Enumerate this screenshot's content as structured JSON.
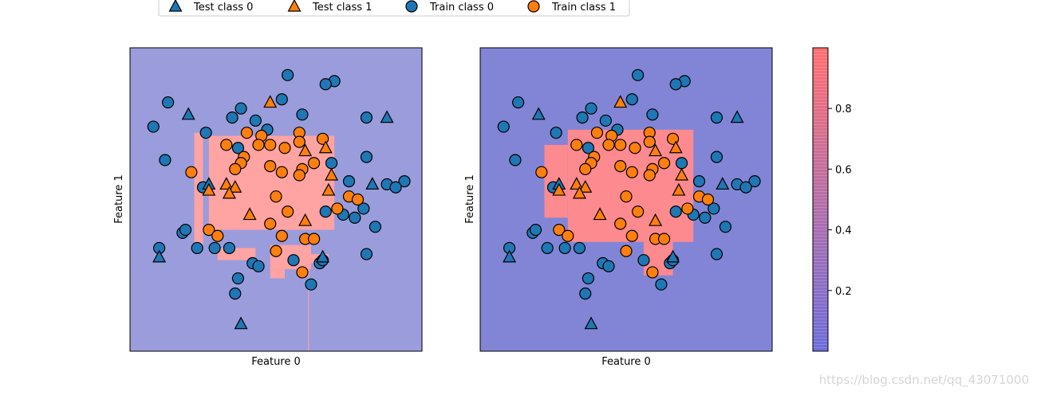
{
  "legend": {
    "items": [
      {
        "label": "Test class 0",
        "marker": "triangle",
        "color": "#1f77b4"
      },
      {
        "label": "Test class 1",
        "marker": "triangle",
        "color": "#ff7f0e"
      },
      {
        "label": "Train class 0",
        "marker": "circle",
        "color": "#1f77b4"
      },
      {
        "label": "Train class 1",
        "marker": "circle",
        "color": "#ff7f0e"
      }
    ]
  },
  "colors": {
    "class0": "#1f77b4",
    "class1": "#ff7f0e",
    "low_region": "#9a9cdc",
    "high_region": "#ffa3a3",
    "colorbar_low": "#6d6ddd",
    "colorbar_high": "#ff6f6f"
  },
  "chart_data": [
    {
      "type": "scatter",
      "xlabel": "Feature 0",
      "ylabel": "Feature 1",
      "xlim": [
        0,
        1
      ],
      "ylim": [
        0,
        1
      ],
      "decision_region_high": [
        {
          "x0": 0.27,
          "x1": 0.7,
          "y0": 0.71,
          "y1": 0.4
        },
        {
          "x0": 0.22,
          "x1": 0.25,
          "y0": 0.72,
          "y1": 0.35
        },
        {
          "x0": 0.61,
          "x1": 0.68,
          "y0": 0.32,
          "y1": 0.29
        },
        {
          "x0": 0.48,
          "x1": 0.62,
          "y0": 0.35,
          "y1": 0.27
        },
        {
          "x0": 0.48,
          "x1": 0.53,
          "y0": 0.27,
          "y1": 0.24
        },
        {
          "x0": 0.3,
          "x1": 0.43,
          "y0": 0.34,
          "y1": 0.3
        },
        {
          "x0": 0.61,
          "x1": 0.613,
          "y0": 0.27,
          "y1": 0.0
        }
      ],
      "series": [
        {
          "name": "Train class 0",
          "marker": "circle",
          "class": 0,
          "x": [
            0.54,
            0.7,
            0.67,
            0.13,
            0.52,
            0.38,
            0.35,
            0.59,
            0.08,
            0.43,
            0.47,
            0.12,
            0.26,
            0.37,
            0.25,
            0.81,
            0.88,
            0.75,
            0.81,
            0.69,
            0.94,
            0.91,
            0.8,
            0.73,
            0.77,
            0.67,
            0.84,
            0.18,
            0.19,
            0.1,
            0.23,
            0.29,
            0.34,
            0.42,
            0.56,
            0.65,
            0.44,
            0.62,
            0.36,
            0.81,
            0.66,
            0.37
          ],
          "y": [
            0.91,
            0.89,
            0.88,
            0.82,
            0.83,
            0.8,
            0.77,
            0.78,
            0.74,
            0.76,
            0.73,
            0.63,
            0.72,
            0.67,
            0.54,
            0.77,
            0.55,
            0.56,
            0.64,
            0.62,
            0.56,
            0.54,
            0.47,
            0.45,
            0.44,
            0.46,
            0.41,
            0.39,
            0.4,
            0.34,
            0.34,
            0.34,
            0.34,
            0.29,
            0.3,
            0.29,
            0.28,
            0.22,
            0.19,
            0.32,
            0.3,
            0.24
          ]
        },
        {
          "name": "Train class 1",
          "marker": "circle",
          "class": 1,
          "x": [
            0.58,
            0.4,
            0.45,
            0.33,
            0.44,
            0.58,
            0.66,
            0.53,
            0.48,
            0.39,
            0.21,
            0.59,
            0.63,
            0.38,
            0.36,
            0.48,
            0.52,
            0.58,
            0.75,
            0.78,
            0.71,
            0.27,
            0.3,
            0.5,
            0.54,
            0.48,
            0.52,
            0.6,
            0.63,
            0.5,
            0.59
          ],
          "y": [
            0.72,
            0.72,
            0.71,
            0.68,
            0.68,
            0.69,
            0.7,
            0.67,
            0.68,
            0.64,
            0.59,
            0.6,
            0.62,
            0.62,
            0.6,
            0.61,
            0.59,
            0.58,
            0.51,
            0.5,
            0.47,
            0.4,
            0.38,
            0.51,
            0.46,
            0.42,
            0.38,
            0.37,
            0.37,
            0.33,
            0.26
          ]
        },
        {
          "name": "Test class 0",
          "marker": "triangle",
          "class": 0,
          "x": [
            0.2,
            0.88,
            0.27,
            0.83,
            0.1,
            0.66,
            0.38
          ],
          "y": [
            0.78,
            0.77,
            0.55,
            0.55,
            0.31,
            0.31,
            0.09
          ]
        },
        {
          "name": "Test class 1",
          "marker": "triangle",
          "class": 1,
          "x": [
            0.48,
            0.67,
            0.6,
            0.33,
            0.36,
            0.27,
            0.68,
            0.41,
            0.6,
            0.69,
            0.34
          ],
          "y": [
            0.82,
            0.67,
            0.66,
            0.55,
            0.54,
            0.53,
            0.53,
            0.45,
            0.43,
            0.58,
            0.52
          ]
        }
      ]
    },
    {
      "type": "scatter",
      "xlabel": "Feature 0",
      "ylabel": "Feature 1",
      "xlim": [
        0,
        1
      ],
      "ylim": [
        0,
        1
      ],
      "decision_region_high": [
        {
          "x0": 0.3,
          "x1": 0.73,
          "y0": 0.73,
          "y1": 0.36
        },
        {
          "x0": 0.22,
          "x1": 0.3,
          "y0": 0.68,
          "y1": 0.44
        },
        {
          "x0": 0.56,
          "x1": 0.66,
          "y0": 0.36,
          "y1": 0.25
        }
      ],
      "series": [
        {
          "name": "Train class 0",
          "marker": "circle",
          "class": 0,
          "x": [
            0.54,
            0.7,
            0.67,
            0.13,
            0.52,
            0.38,
            0.35,
            0.59,
            0.08,
            0.43,
            0.47,
            0.12,
            0.26,
            0.37,
            0.25,
            0.81,
            0.88,
            0.75,
            0.81,
            0.69,
            0.94,
            0.91,
            0.8,
            0.73,
            0.77,
            0.67,
            0.84,
            0.18,
            0.19,
            0.1,
            0.23,
            0.29,
            0.34,
            0.42,
            0.56,
            0.65,
            0.44,
            0.62,
            0.36,
            0.81,
            0.66,
            0.37
          ],
          "y": [
            0.91,
            0.89,
            0.88,
            0.82,
            0.83,
            0.8,
            0.77,
            0.78,
            0.74,
            0.76,
            0.73,
            0.63,
            0.72,
            0.67,
            0.54,
            0.77,
            0.55,
            0.56,
            0.64,
            0.62,
            0.56,
            0.54,
            0.47,
            0.45,
            0.44,
            0.46,
            0.41,
            0.39,
            0.4,
            0.34,
            0.34,
            0.34,
            0.34,
            0.29,
            0.3,
            0.29,
            0.28,
            0.22,
            0.19,
            0.32,
            0.3,
            0.24
          ]
        },
        {
          "name": "Train class 1",
          "marker": "circle",
          "class": 1,
          "x": [
            0.58,
            0.4,
            0.45,
            0.33,
            0.44,
            0.58,
            0.66,
            0.53,
            0.48,
            0.39,
            0.21,
            0.59,
            0.63,
            0.38,
            0.36,
            0.48,
            0.52,
            0.58,
            0.75,
            0.78,
            0.71,
            0.27,
            0.3,
            0.5,
            0.54,
            0.48,
            0.52,
            0.6,
            0.63,
            0.5,
            0.59
          ],
          "y": [
            0.72,
            0.72,
            0.71,
            0.68,
            0.68,
            0.69,
            0.7,
            0.67,
            0.68,
            0.64,
            0.59,
            0.6,
            0.62,
            0.62,
            0.6,
            0.61,
            0.59,
            0.58,
            0.51,
            0.5,
            0.47,
            0.4,
            0.38,
            0.51,
            0.46,
            0.42,
            0.38,
            0.37,
            0.37,
            0.33,
            0.26
          ]
        },
        {
          "name": "Test class 0",
          "marker": "triangle",
          "class": 0,
          "x": [
            0.2,
            0.88,
            0.27,
            0.83,
            0.1,
            0.66,
            0.38
          ],
          "y": [
            0.78,
            0.77,
            0.55,
            0.55,
            0.31,
            0.31,
            0.09
          ]
        },
        {
          "name": "Test class 1",
          "marker": "triangle",
          "class": 1,
          "x": [
            0.48,
            0.67,
            0.6,
            0.33,
            0.36,
            0.27,
            0.68,
            0.41,
            0.6,
            0.69,
            0.34
          ],
          "y": [
            0.82,
            0.67,
            0.66,
            0.55,
            0.54,
            0.53,
            0.53,
            0.45,
            0.43,
            0.58,
            0.52
          ]
        }
      ]
    }
  ],
  "colorbar": {
    "range": [
      0.0,
      1.0
    ],
    "ticks": [
      0.2,
      0.4,
      0.6,
      0.8
    ],
    "tick_labels": [
      "0.2",
      "0.4",
      "0.6",
      "0.8"
    ]
  },
  "watermark": "https://blog.csdn.net/qq_43071000"
}
